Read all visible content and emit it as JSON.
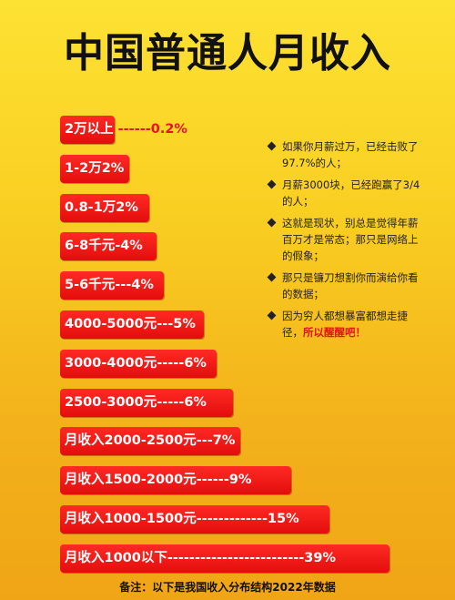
{
  "page": {
    "title": "中国普通人月收入"
  },
  "chart_data": {
    "type": "bar",
    "title": "中国普通人月收入",
    "categories": [
      "2万以上",
      "1-2万",
      "0.8-1万",
      "6-8千元",
      "5-6千元",
      "4000-5000元",
      "3000-4000元",
      "2500-3000元",
      "月收入2000-2500元",
      "月收入1500-2000元",
      "月收入1000-1500元",
      "月收入1000以下"
    ],
    "values": [
      0.2,
      2,
      2,
      4,
      4,
      5,
      6,
      6,
      7,
      9,
      15,
      39
    ],
    "unit": "%",
    "labels": [
      {
        "head": "2万以上",
        "tail": " ------0.2%"
      },
      {
        "head": "1-2万2%",
        "tail": ""
      },
      {
        "head": "0.8-1万2%",
        "tail": ""
      },
      {
        "head": "6-8千元-4%",
        "tail": ""
      },
      {
        "head": "5-6千元---4%",
        "tail": ""
      },
      {
        "head": "4000-5000元---5%",
        "tail": ""
      },
      {
        "head": "3000-4000元-----6%",
        "tail": ""
      },
      {
        "head": "2500-3000元-----6%",
        "tail": ""
      },
      {
        "head": "月收入2000-2500元---7%",
        "tail": ""
      },
      {
        "head": "月收入1500-2000元------9%",
        "tail": ""
      },
      {
        "head": "月收入1000-1500元-------------15%",
        "tail": ""
      },
      {
        "head": "月收入1000以下-------------------------39%",
        "tail": ""
      }
    ]
  },
  "notes": [
    {
      "text": "如果你月薪过万，已经击败了97.7%的人；",
      "emphasis": ""
    },
    {
      "text": "月薪3000块，已经跑赢了3/4的人；",
      "emphasis": ""
    },
    {
      "text": "这就是现状，别总是觉得年薪百万才是常态；那只是网络上的假象；",
      "emphasis": ""
    },
    {
      "text": "那只是镰刀想割你而演给你看的数据；",
      "emphasis": ""
    },
    {
      "text": "因为穷人都想暴富都想走捷径，",
      "emphasis": "所以醒醒吧！"
    }
  ],
  "footnote": "备注：以下是我国收入分布结构2022年数据",
  "colors": {
    "bar": "#e8141b",
    "title": "#111111",
    "background_top": "#fde233",
    "background_bottom": "#f0a516"
  }
}
